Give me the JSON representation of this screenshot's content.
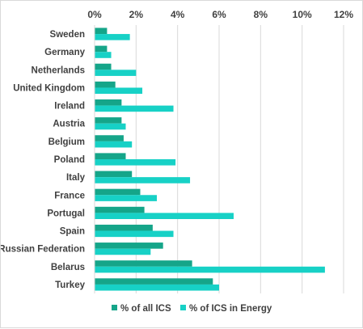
{
  "chart_data": {
    "type": "bar",
    "orientation": "horizontal",
    "categories": [
      "Sweden",
      "Germany",
      "Netherlands",
      "United Kingdom",
      "Ireland",
      "Austria",
      "Belgium",
      "Poland",
      "Italy",
      "France",
      "Portugal",
      "Spain",
      "Russian Federation",
      "Belarus",
      "Turkey"
    ],
    "series": [
      {
        "name": "% of all ICS",
        "color": "#15A589",
        "values": [
          0.6,
          0.6,
          0.8,
          1.0,
          1.3,
          1.3,
          1.4,
          1.5,
          1.8,
          2.2,
          2.4,
          2.8,
          3.3,
          4.7,
          5.7
        ]
      },
      {
        "name": "% of ICS in Energy",
        "color": "#17D1C6",
        "values": [
          1.7,
          0.8,
          2.0,
          2.3,
          3.8,
          1.5,
          1.8,
          3.9,
          4.6,
          3.0,
          6.7,
          3.8,
          2.7,
          11.1,
          6.0
        ]
      }
    ],
    "xlim": [
      0,
      12
    ],
    "xticks": [
      "0%",
      "2%",
      "4%",
      "6%",
      "8%",
      "10%",
      "12%"
    ],
    "xlabel": "",
    "ylabel": "",
    "title": "",
    "grid": "vertical",
    "legend_position": "bottom"
  }
}
